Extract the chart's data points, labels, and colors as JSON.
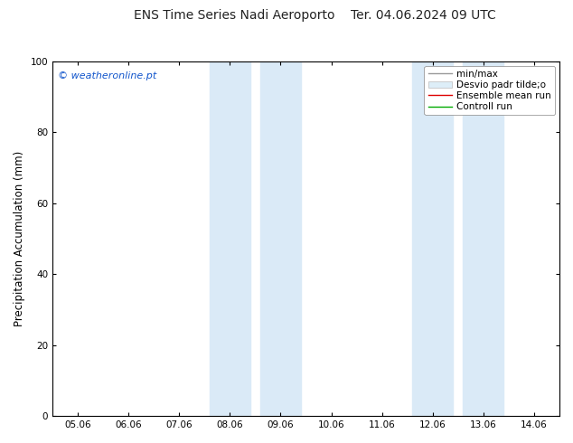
{
  "title_left": "ENS Time Series Nadi Aeroporto",
  "title_right": "Ter. 04.06.2024 09 UTC",
  "ylabel": "Precipitation Accumulation (mm)",
  "watermark": "© weatheronline.pt",
  "ylim": [
    0,
    100
  ],
  "x_tick_labels": [
    "05.06",
    "06.06",
    "07.06",
    "08.06",
    "09.06",
    "10.06",
    "11.06",
    "12.06",
    "13.06",
    "14.06"
  ],
  "x_tick_positions": [
    0,
    1,
    2,
    3,
    4,
    5,
    6,
    7,
    8,
    9
  ],
  "xlim": [
    -0.5,
    9.5
  ],
  "shaded_regions": [
    {
      "x_start": 2.6,
      "x_end": 3.4,
      "color": "#daeaf7"
    },
    {
      "x_start": 3.6,
      "x_end": 4.4,
      "color": "#daeaf7"
    },
    {
      "x_start": 6.6,
      "x_end": 7.4,
      "color": "#daeaf7"
    },
    {
      "x_start": 7.6,
      "x_end": 8.4,
      "color": "#daeaf7"
    }
  ],
  "legend_labels": [
    "min/max",
    "Desvio padr tilde;o",
    "Ensemble mean run",
    "Controll run"
  ],
  "legend_line_colors": [
    "#999999",
    "#cccccc",
    "#dd0000",
    "#00aa00"
  ],
  "watermark_color": "#1155cc",
  "bg_color": "#ffffff",
  "title_fontsize": 10,
  "tick_fontsize": 7.5,
  "ylabel_fontsize": 8.5,
  "legend_fontsize": 7.5
}
